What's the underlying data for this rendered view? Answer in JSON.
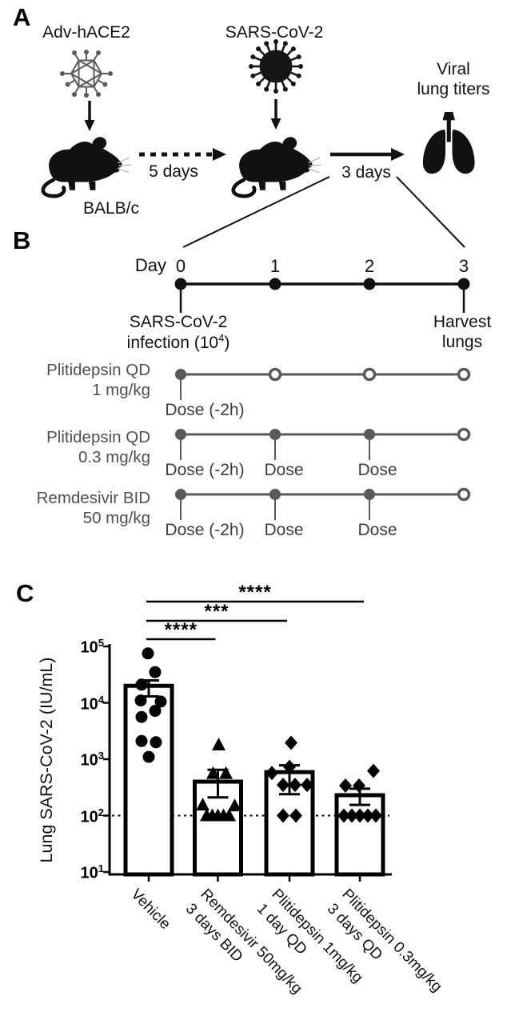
{
  "panels": {
    "a": "A",
    "b": "B",
    "c": "C"
  },
  "panel_a": {
    "adv_label": "Adv-hACE2",
    "virus_label": "SARS-CoV-2",
    "mouse_label": "BALB/c",
    "interval1": "5 days",
    "interval2": "3 days",
    "outcome_line1": "Viral",
    "outcome_line2": "lung titers"
  },
  "panel_b": {
    "day_label": "Day",
    "days": [
      "0",
      "1",
      "2",
      "3"
    ],
    "infection_line1": "SARS-CoV-2",
    "infection_line2_base": "infection (10",
    "infection_line2_exp": "4",
    "infection_line2_close": ")",
    "harvest_line1": "Harvest",
    "harvest_line2": "lungs",
    "rows": [
      {
        "line1": "Plitidepsin QD",
        "line2": "1 mg/kg",
        "markers": [
          "filled",
          "open",
          "open",
          "open"
        ],
        "labels": [
          "Dose (-2h)",
          null,
          null,
          null
        ]
      },
      {
        "line1": "Plitidepsin QD",
        "line2": "0.3 mg/kg",
        "markers": [
          "filled",
          "filled",
          "filled",
          "open"
        ],
        "labels": [
          "Dose (-2h)",
          "Dose",
          "Dose",
          null
        ]
      },
      {
        "line1": "Remdesivir BID",
        "line2": "50 mg/kg",
        "markers": [
          "filled",
          "filled",
          "filled",
          "open"
        ],
        "labels": [
          "Dose (-2h)",
          "Dose",
          "Dose",
          null
        ]
      }
    ]
  },
  "chart_data": {
    "type": "bar",
    "title": "",
    "xlabel": "",
    "ylabel": "Lung SARS-CoV-2 (IU/mL)",
    "yscale": "log",
    "ylim": [
      10,
      100000
    ],
    "ytick_base": "10",
    "ytick_exponents": [
      5,
      4,
      3,
      2,
      1
    ],
    "limit_of_detection": 100,
    "grid": false,
    "legend": "none",
    "categories": [
      [
        "Vehicle"
      ],
      [
        "Remdesivir 50mg/kg",
        "3 days BID"
      ],
      [
        "Plitidepsin 1mg/kg",
        "1 day QD"
      ],
      [
        "Plitidepsin 0.3mg/kg",
        "3 days QD"
      ]
    ],
    "series": [
      {
        "name": "Vehicle",
        "marker": "circle",
        "bar_mean": 20000,
        "err_low": 13000,
        "err_high": 25000,
        "points": [
          75000,
          35000,
          21000,
          11000,
          10500,
          7200,
          5600,
          2100,
          2000,
          1100
        ],
        "jitter": [
          -1,
          8,
          -9,
          -10,
          15,
          8,
          -9,
          -9,
          9,
          0
        ]
      },
      {
        "name": "Remdesivir 50mg/kg 3 days BID",
        "marker": "triangle",
        "bar_mean": 400,
        "err_low": 210,
        "err_high": 650,
        "points": [
          1800,
          560,
          560,
          155,
          150,
          100,
          100,
          100,
          100,
          100
        ],
        "jitter": [
          1,
          -6,
          10,
          -19,
          21,
          -14,
          -7,
          0,
          7,
          14
        ]
      },
      {
        "name": "Plitidepsin 1mg/kg 1 day QD",
        "marker": "diamond",
        "bar_mean": 590,
        "err_low": 240,
        "err_high": 780,
        "points": [
          1950,
          730,
          570,
          350,
          350,
          350,
          100,
          100
        ],
        "jitter": [
          2,
          0,
          -22,
          -8,
          7,
          22,
          -8,
          8
        ]
      },
      {
        "name": "Plitidepsin 0.3mg/kg 3 days QD",
        "marker": "diamond",
        "bar_mean": 230,
        "err_low": 155,
        "err_high": 300,
        "points": [
          620,
          340,
          340,
          100,
          100,
          100,
          100,
          100
        ],
        "jitter": [
          17,
          -18,
          -1,
          -20,
          -10,
          0,
          10,
          20
        ]
      }
    ],
    "significance": [
      {
        "label": "****",
        "from": 0,
        "to": 3
      },
      {
        "label": "***",
        "from": 0,
        "to": 2
      },
      {
        "label": "****",
        "from": 0,
        "to": 1
      }
    ],
    "colors": {
      "bar_fill": "#ffffff",
      "bar_stroke": "#000000",
      "marker": "#000000"
    }
  }
}
